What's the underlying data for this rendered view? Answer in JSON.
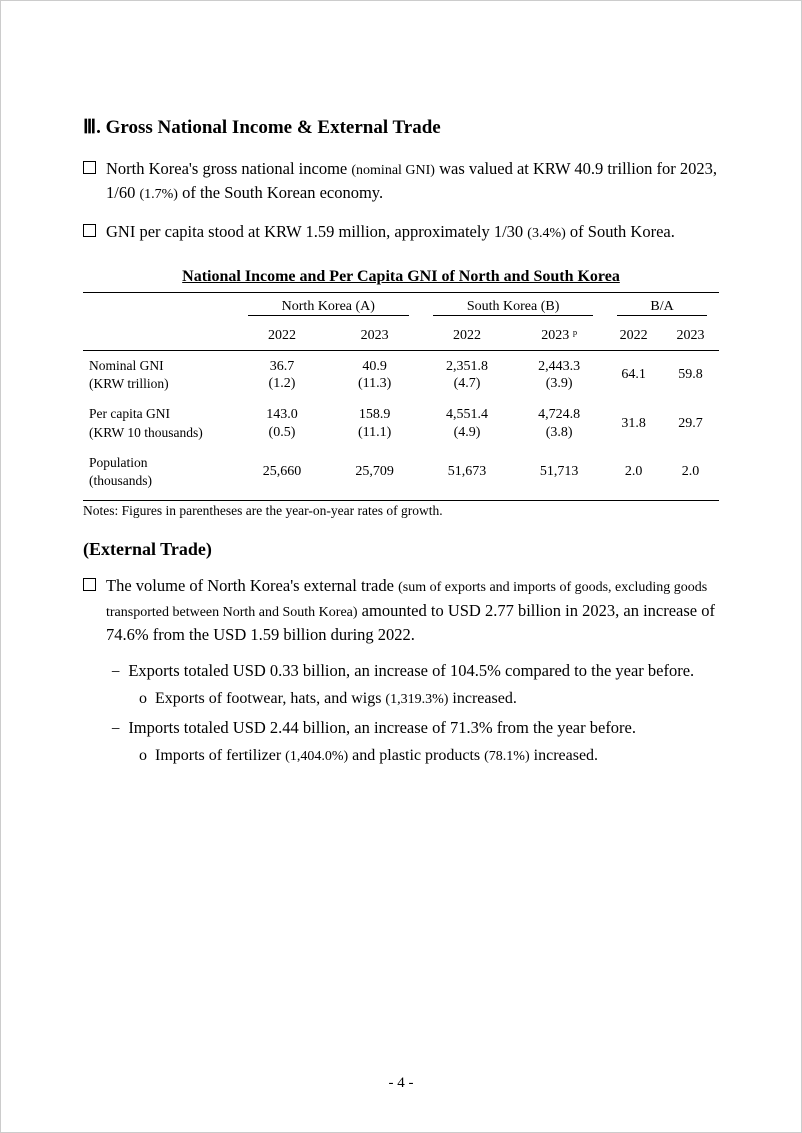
{
  "section": {
    "title": "Ⅲ. Gross National Income & External Trade",
    "bullets": [
      {
        "pre": "North Korea's gross national income ",
        "small1": "(nominal GNI)",
        "mid": " was valued at KRW 40.9 trillion for 2023, 1/60 ",
        "small2": "(1.7%)",
        "post": " of the South Korean economy."
      },
      {
        "pre": "GNI per capita stood at KRW 1.59 million, approximately 1/30 ",
        "small1": "(3.4%)",
        "mid": " of South Korea.",
        "small2": "",
        "post": ""
      }
    ]
  },
  "table": {
    "title": "National Income and Per Capita GNI of North and South Korea",
    "groups": [
      "North Korea (A)",
      "South Korea (B)",
      "B/A"
    ],
    "years": [
      "2022",
      "2023",
      "2022",
      "2023 ᵖ",
      "2022",
      "2023"
    ],
    "rows": [
      {
        "label": "Nominal GNI\n(KRW trillion)",
        "cells": [
          {
            "main": "36.7",
            "sub": "(1.2)"
          },
          {
            "main": "40.9",
            "sub": "(11.3)"
          },
          {
            "main": "2,351.8",
            "sub": "(4.7)"
          },
          {
            "main": "2,443.3",
            "sub": "(3.9)"
          },
          {
            "main": "64.1",
            "sub": ""
          },
          {
            "main": "59.8",
            "sub": ""
          }
        ]
      },
      {
        "label": "Per capita GNI\n(KRW 10 thousands)",
        "cells": [
          {
            "main": "143.0",
            "sub": "(0.5)"
          },
          {
            "main": "158.9",
            "sub": "(11.1)"
          },
          {
            "main": "4,551.4",
            "sub": "(4.9)"
          },
          {
            "main": "4,724.8",
            "sub": "(3.8)"
          },
          {
            "main": "31.8",
            "sub": ""
          },
          {
            "main": "29.7",
            "sub": ""
          }
        ]
      },
      {
        "label": "Population\n(thousands)",
        "cells": [
          {
            "main": "25,660",
            "sub": ""
          },
          {
            "main": "25,709",
            "sub": ""
          },
          {
            "main": "51,673",
            "sub": ""
          },
          {
            "main": "51,713",
            "sub": ""
          },
          {
            "main": "2.0",
            "sub": ""
          },
          {
            "main": "2.0",
            "sub": ""
          }
        ]
      }
    ],
    "notes": "Notes: Figures in parentheses are the year-on-year rates of growth."
  },
  "external": {
    "title": "(External Trade)",
    "bullet": {
      "pre": "The volume of North Korea's external trade ",
      "small1": "(sum of exports and imports of goods, excluding goods transported between North and South Korea)",
      "post": " amounted to USD 2.77 billion in 2023, an increase of 74.6% from the USD 1.59 billion during 2022."
    },
    "dash1": "Exports totaled USD 0.33 billion, an increase of 104.5% compared to the year before.",
    "o1": {
      "pre": "Exports of footwear, hats, and wigs ",
      "small": "(1,319.3%)",
      "post": " increased."
    },
    "dash2": "Imports totaled USD 2.44 billion, an increase of 71.3% from the year before.",
    "o2": {
      "pre": "Imports of fertilizer ",
      "small1": "(1,404.0%)",
      "mid": " and plastic products ",
      "small2": "(78.1%)",
      "post": " increased."
    }
  },
  "pageNumber": "- 4 -",
  "style": {
    "background": "#ffffff",
    "text_color": "#000000",
    "border_color": "#000000",
    "title_fontsize": 19,
    "body_fontsize": 16.5,
    "small_fontsize": 14,
    "table_fontsize": 14
  }
}
